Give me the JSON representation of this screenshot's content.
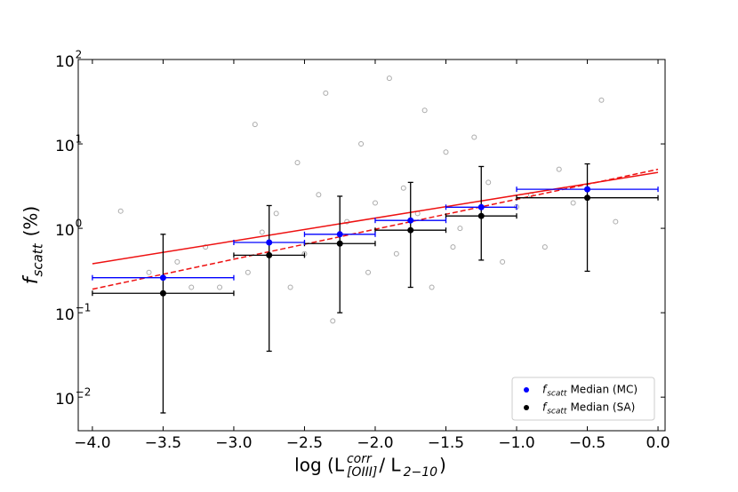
{
  "chart_data": {
    "type": "scatter",
    "y_label": {
      "main": "f",
      "sub": "scatt",
      "rest": "(%)"
    },
    "x_label": {
      "prefix": "log (L",
      "sup": "corr",
      "sub": "[OIII]",
      "middle": "/ L",
      "sub2": "2−10",
      "suffix": ")"
    },
    "xlim": [
      -4.1,
      0.05
    ],
    "ylim": [
      0.004,
      100
    ],
    "log_y": true,
    "xticks": [
      {
        "value": -4,
        "label": "−4.0"
      },
      {
        "value": -3.5,
        "label": "−3.5"
      },
      {
        "value": -3,
        "label": "−3.0"
      },
      {
        "value": -2.5,
        "label": "−2.5"
      },
      {
        "value": -2,
        "label": "−2.0"
      },
      {
        "value": -1.5,
        "label": "−1.5"
      },
      {
        "value": -1,
        "label": "−1.0"
      },
      {
        "value": -0.5,
        "label": "−0.5"
      },
      {
        "value": 0,
        "label": "0.0"
      }
    ],
    "yticks": [
      {
        "value": 0.01,
        "label": "10",
        "exponent": "−2"
      },
      {
        "value": 0.1,
        "label": "10",
        "exponent": "−1"
      },
      {
        "value": 1,
        "label": "10",
        "exponent": "0"
      },
      {
        "value": 10,
        "label": "10",
        "exponent": "1"
      },
      {
        "value": 100,
        "label": "10",
        "exponent": "2"
      }
    ],
    "legend_position": "lower right",
    "background": {
      "color": "#aaaaaa",
      "x": [
        -3.8,
        -3.6,
        -3.4,
        -3.3,
        -3.2,
        -3.1,
        -2.9,
        -2.85,
        -2.8,
        -2.7,
        -2.6,
        -2.55,
        -2.5,
        -2.4,
        -2.35,
        -2.3,
        -2.2,
        -2.1,
        -2.05,
        -2.0,
        -1.9,
        -1.85,
        -1.8,
        -1.7,
        -1.65,
        -1.6,
        -1.5,
        -1.45,
        -1.4,
        -1.3,
        -1.2,
        -1.1,
        -1.0,
        -0.9,
        -0.8,
        -0.7,
        -0.6,
        -0.4,
        -0.3
      ],
      "values": [
        1.6,
        0.3,
        0.4,
        0.2,
        0.6,
        0.2,
        0.3,
        17,
        0.9,
        1.5,
        0.2,
        6,
        0.5,
        2.5,
        40,
        0.08,
        1.2,
        10,
        0.3,
        2.0,
        60,
        0.5,
        3.0,
        1.5,
        25,
        0.2,
        8,
        0.6,
        1.0,
        12,
        3.5,
        0.4,
        1.8,
        2.5,
        0.6,
        5,
        2.0,
        33,
        1.2
      ]
    },
    "series": [
      {
        "name_prefix": "f",
        "name_sub": "scatt",
        "name": "Median (MC)",
        "color": "#0000ff",
        "x": [
          -3.5,
          -2.75,
          -2.25,
          -1.75,
          -1.25,
          -0.5
        ],
        "xerr": [
          0.5,
          0.25,
          0.25,
          0.25,
          0.25,
          0.5
        ],
        "values": [
          0.26,
          0.68,
          0.85,
          1.24,
          1.78,
          2.9
        ]
      },
      {
        "name_prefix": "f",
        "name_sub": "scatt",
        "name": "Median (SA)",
        "color": "#000000",
        "x": [
          -3.5,
          -2.75,
          -2.25,
          -1.75,
          -1.25,
          -0.5
        ],
        "xerr": [
          0.5,
          0.25,
          0.25,
          0.25,
          0.25,
          0.5
        ],
        "values": [
          0.17,
          0.48,
          0.66,
          0.95,
          1.4,
          2.3
        ],
        "y_low": [
          0.0065,
          0.035,
          0.1,
          0.2,
          0.42,
          0.31
        ],
        "y_high": [
          0.85,
          1.86,
          2.4,
          3.5,
          5.4,
          5.8
        ]
      }
    ],
    "fits": [
      {
        "style": "solid",
        "color": "#ee1111",
        "x": [
          -4,
          0
        ],
        "values": [
          0.38,
          4.6
        ]
      },
      {
        "style": "dashed",
        "color": "#ee1111",
        "x": [
          -4,
          0
        ],
        "values": [
          0.19,
          5.0
        ]
      }
    ]
  }
}
